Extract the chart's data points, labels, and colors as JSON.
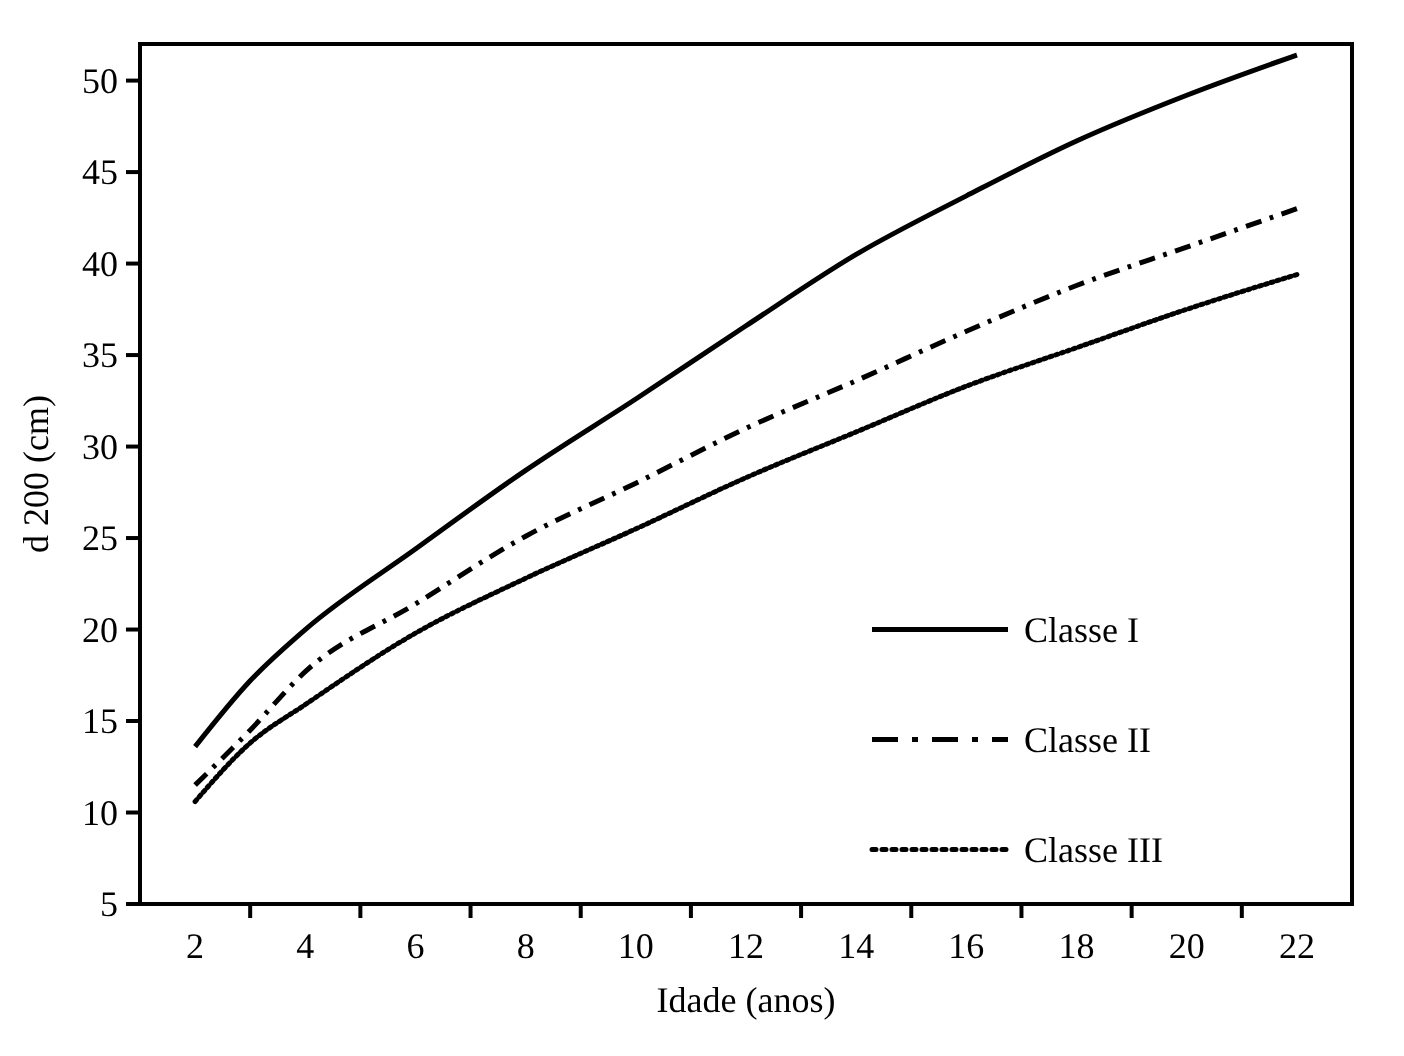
{
  "chart_data": {
    "type": "line",
    "xlabel": "Idade (anos)",
    "ylabel": "d 200 (cm)",
    "x": [
      2,
      3,
      4,
      6,
      8,
      10,
      12,
      14,
      16,
      18,
      20,
      22
    ],
    "series": [
      {
        "name": "Classe I",
        "color": "#000000",
        "line_style": "solid",
        "values": [
          13.6,
          17.2,
          20.0,
          24.4,
          28.7,
          32.6,
          36.6,
          40.5,
          43.7,
          46.7,
          49.2,
          51.4
        ]
      },
      {
        "name": "Classe II",
        "color": "#000000",
        "line_style": "dashed",
        "values": [
          11.5,
          14.5,
          17.7,
          21.4,
          25.1,
          28.0,
          31.0,
          33.6,
          36.3,
          38.8,
          40.9,
          43.0
        ]
      },
      {
        "name": "Classe III",
        "color": "#000000",
        "line_style": "dotted",
        "values": [
          10.6,
          13.8,
          15.9,
          19.8,
          22.8,
          25.5,
          28.3,
          30.8,
          33.3,
          35.4,
          37.5,
          39.4
        ]
      }
    ],
    "xlim": [
      1,
      23
    ],
    "xticks": [
      2,
      {
        "value": 3,
        "label": null
      },
      4,
      {
        "value": 5,
        "label": null
      },
      6,
      {
        "value": 7,
        "label": null
      },
      8,
      {
        "value": 9,
        "label": null
      },
      10,
      {
        "value": 11,
        "label": null
      },
      12,
      {
        "value": 13,
        "label": null
      },
      14,
      {
        "value": 15,
        "label": null
      },
      16,
      {
        "value": 17,
        "label": null
      },
      18,
      {
        "value": 19,
        "label": null
      },
      20,
      {
        "value": 21,
        "label": null
      },
      22
    ],
    "ylim": [
      5,
      52
    ],
    "yticks": [
      5,
      10,
      15,
      20,
      25,
      30,
      35,
      40,
      45,
      50
    ],
    "grid": false,
    "legend": "bottom right",
    "marker": "none"
  }
}
